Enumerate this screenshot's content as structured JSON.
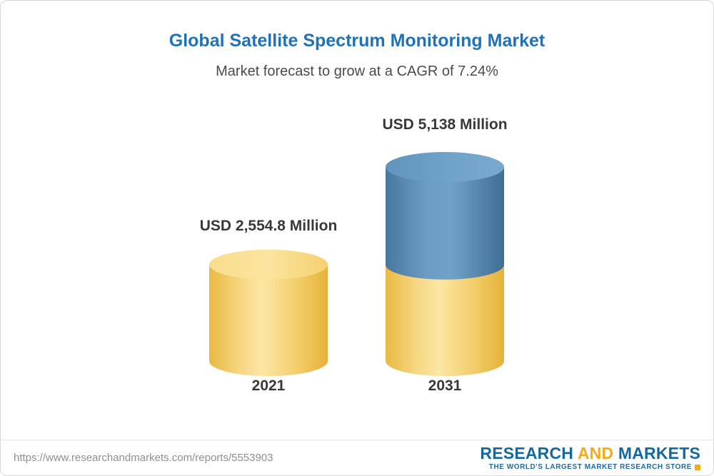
{
  "chart_data": {
    "type": "bar",
    "variant": "3d-cylinder-stacked",
    "title": "Global Satellite Spectrum Monitoring Market",
    "subtitle": "Market forecast to grow at a CAGR of 7.24%",
    "cagr_percent": 7.24,
    "unit": "USD Million",
    "categories": [
      "2021",
      "2031"
    ],
    "values": [
      2554.8,
      5138
    ],
    "value_labels": [
      "USD 2,554.8 Million",
      "USD 5,138 Million"
    ],
    "ylim": [
      0,
      5138
    ],
    "legend": "none",
    "grid": false,
    "bars": [
      {
        "category": "2021",
        "label": "USD 2,554.8 Million",
        "total": 2554.8,
        "segments": [
          {
            "value": 2554.8,
            "color": "gold"
          }
        ]
      },
      {
        "category": "2031",
        "label": "USD 5,138 Million",
        "total": 5138,
        "segments": [
          {
            "value": 2554.8,
            "color": "gold"
          },
          {
            "value": 2583.2,
            "color": "blue"
          }
        ]
      }
    ]
  },
  "colors": {
    "title": "#1e73b8",
    "gold": "#f6d27a",
    "blue": "#6499c0",
    "logo_blue": "#15689e",
    "logo_orange": "#f3ab1b"
  },
  "footer": {
    "url": "https://www.researchandmarkets.com/reports/5553903",
    "logo": {
      "word1": "RESEARCH",
      "word2": "AND",
      "word3": "MARKETS",
      "tagline": "THE WORLD'S LARGEST MARKET RESEARCH STORE"
    }
  }
}
